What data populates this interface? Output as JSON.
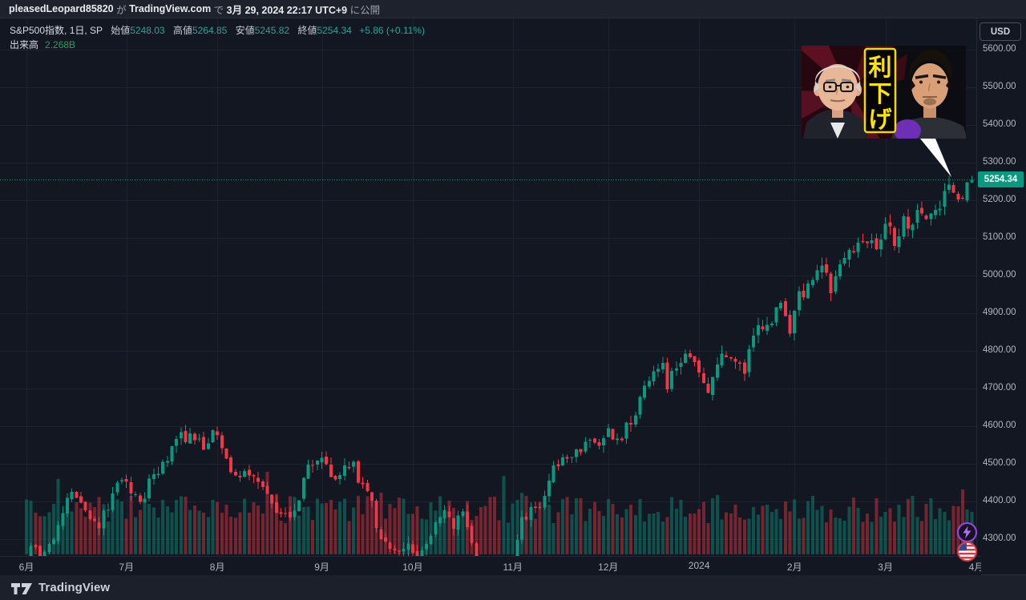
{
  "colors": {
    "bg": "#131722",
    "panel": "#1e222d",
    "grid": "#1d2230",
    "up": "#089981",
    "down": "#f23645",
    "vol_up": "rgba(8,153,129,0.45)",
    "vol_down": "rgba(242,54,69,0.45)",
    "axis_text": "#b2b5be",
    "badge_bg": "#089981",
    "banner_yellow": "#ffe600"
  },
  "header": {
    "user": "pleasedLeopard85820",
    "particle1": " が ",
    "site": "TradingView.com",
    "particle2": " で ",
    "datetime": "3月 29, 2024 22:17 UTC+9",
    "particle3": " に公開"
  },
  "legend": {
    "title": "S&P500指数, 1日, SP",
    "open_label": "始値",
    "open_value": "5248.03",
    "high_label": "高値",
    "high_value": "5264.85",
    "low_label": "安値",
    "low_value": "5245.82",
    "close_label": "終値",
    "close_value": "5254.34",
    "change": "+5.86 (+0.11%)",
    "volume_label": "出来高",
    "volume_value": "2.268B"
  },
  "price_scale": {
    "currency_button": "USD",
    "last_price": "5254.34"
  },
  "overlay": {
    "caption": "利下げ",
    "caption_chars": [
      "利",
      "下",
      "げ"
    ]
  },
  "footer": {
    "brand": "TradingView"
  },
  "chart_data": {
    "type": "candlestick",
    "title": "S&P500指数, 1日, SP",
    "ylabel": "USD",
    "grid": true,
    "visible_price_range": [
      4258,
      5674
    ],
    "y_ticks": [
      5600,
      5500,
      5400,
      5300,
      5200,
      5100,
      5000,
      4900,
      4800,
      4700,
      4600,
      4500,
      4400,
      4300
    ],
    "x_ticks": [
      {
        "label": "6月",
        "i": 0
      },
      {
        "label": "7月",
        "i": 22
      },
      {
        "label": "8月",
        "i": 42
      },
      {
        "label": "9月",
        "i": 65
      },
      {
        "label": "10月",
        "i": 85
      },
      {
        "label": "11月",
        "i": 107
      },
      {
        "label": "12月",
        "i": 128
      },
      {
        "label": "2024",
        "i": 148
      },
      {
        "label": "2月",
        "i": 169
      },
      {
        "label": "3月",
        "i": 189
      },
      {
        "label": "4月",
        "i": 209
      }
    ],
    "trading_days": 209,
    "seed": 20240329,
    "close_anchors": [
      [
        0,
        4221
      ],
      [
        1,
        4282
      ],
      [
        4,
        4267
      ],
      [
        6,
        4299
      ],
      [
        8,
        4369
      ],
      [
        10,
        4426
      ],
      [
        11,
        4410
      ],
      [
        15,
        4348
      ],
      [
        16,
        4329
      ],
      [
        20,
        4450
      ],
      [
        21,
        4456
      ],
      [
        25,
        4399
      ],
      [
        28,
        4472
      ],
      [
        30,
        4505
      ],
      [
        33,
        4566
      ],
      [
        38,
        4567
      ],
      [
        39,
        4537
      ],
      [
        41,
        4589
      ],
      [
        42,
        4577
      ],
      [
        45,
        4478
      ],
      [
        49,
        4469
      ],
      [
        52,
        4438
      ],
      [
        55,
        4370
      ],
      [
        59,
        4376
      ],
      [
        62,
        4498
      ],
      [
        64,
        4508
      ],
      [
        65,
        4516
      ],
      [
        67,
        4465
      ],
      [
        72,
        4505
      ],
      [
        73,
        4450
      ],
      [
        76,
        4402
      ],
      [
        77,
        4330
      ],
      [
        80,
        4274
      ],
      [
        84,
        4288
      ],
      [
        86,
        4229
      ],
      [
        89,
        4309
      ],
      [
        92,
        4377
      ],
      [
        94,
        4328
      ],
      [
        96,
        4373
      ],
      [
        99,
        4224
      ],
      [
        103,
        4137
      ],
      [
        104,
        4117
      ],
      [
        106,
        4194
      ],
      [
        107,
        4238
      ],
      [
        109,
        4358
      ],
      [
        112,
        4383
      ],
      [
        114,
        4415
      ],
      [
        116,
        4496
      ],
      [
        119,
        4514
      ],
      [
        121,
        4538
      ],
      [
        123,
        4559
      ],
      [
        127,
        4568
      ],
      [
        128,
        4595
      ],
      [
        130,
        4567
      ],
      [
        133,
        4604
      ],
      [
        136,
        4707
      ],
      [
        137,
        4720
      ],
      [
        140,
        4768
      ],
      [
        141,
        4698
      ],
      [
        142,
        4747
      ],
      [
        146,
        4783
      ],
      [
        147,
        4770
      ],
      [
        148,
        4743
      ],
      [
        150,
        4688
      ],
      [
        152,
        4764
      ],
      [
        154,
        4783
      ],
      [
        157,
        4766
      ],
      [
        158,
        4739
      ],
      [
        160,
        4840
      ],
      [
        163,
        4869
      ],
      [
        166,
        4928
      ],
      [
        168,
        4846
      ],
      [
        169,
        4906
      ],
      [
        170,
        4959
      ],
      [
        171,
        4943
      ],
      [
        175,
        5027
      ],
      [
        177,
        4953
      ],
      [
        179,
        5030
      ],
      [
        183,
        5087
      ],
      [
        184,
        5089
      ],
      [
        187,
        5070
      ],
      [
        188,
        5096
      ],
      [
        189,
        5137
      ],
      [
        190,
        5131
      ],
      [
        191,
        5079
      ],
      [
        193,
        5157
      ],
      [
        194,
        5124
      ],
      [
        196,
        5175
      ],
      [
        198,
        5150
      ],
      [
        201,
        5178
      ],
      [
        202,
        5225
      ],
      [
        203,
        5242
      ],
      [
        206,
        5204
      ],
      [
        207,
        5248
      ],
      [
        208,
        5254.34
      ]
    ],
    "last_candle": {
      "open": 5248.03,
      "high": 5264.85,
      "low": 5245.82,
      "close": 5254.34,
      "change": "+5.86 (+0.11%)"
    },
    "last_volume": "2.268B"
  }
}
